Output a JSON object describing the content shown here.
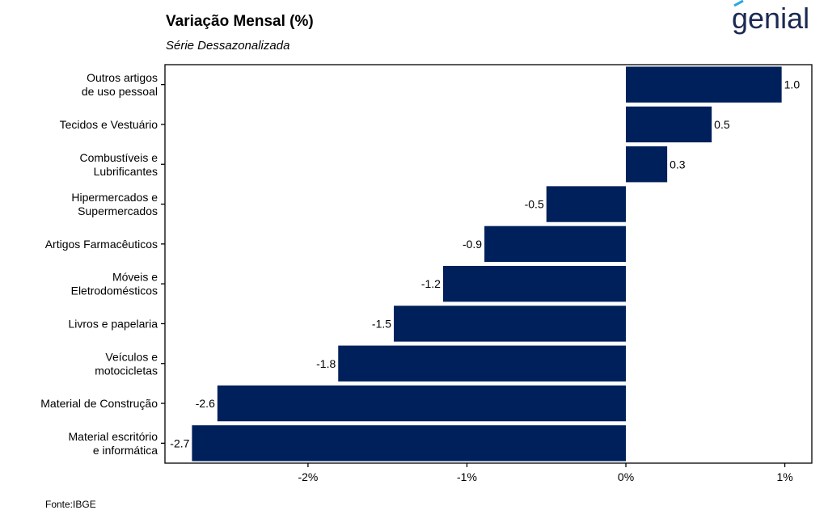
{
  "header": {
    "title": "Variação Mensal (%)",
    "subtitle": "Série Dessazonalizada",
    "logo_text": "genial"
  },
  "footer": {
    "source": "Fonte:IBGE"
  },
  "colors": {
    "bar": "#00205b",
    "logo": "#1b2a52",
    "logo_accent": "#29a9e0"
  },
  "chart_data": {
    "type": "bar",
    "orientation": "horizontal",
    "categories": [
      [
        "Outros artigos",
        "de uso pessoal"
      ],
      [
        "Tecidos e Vestuário"
      ],
      [
        "Combustíveis e",
        "Lubrificantes"
      ],
      [
        "Hipermercados e",
        "Supermercados"
      ],
      [
        "Artigos Farmacêuticos"
      ],
      [
        "Móveis e",
        "Eletrodomésticos"
      ],
      [
        "Livros e papelaria"
      ],
      [
        "Veículos e",
        "motocicletas"
      ],
      [
        "Material de Construção"
      ],
      [
        "Material escritório",
        "e informática"
      ]
    ],
    "values": [
      0.98,
      0.54,
      0.26,
      -0.5,
      -0.89,
      -1.15,
      -1.46,
      -1.81,
      -2.57,
      -2.73
    ],
    "data_labels": [
      "1.0",
      "0.5",
      "0.3",
      "-0.5",
      "-0.9",
      "-1.2",
      "-1.5",
      "-1.8",
      "-2.6",
      "-2.7"
    ],
    "xticks": [
      -2,
      -1,
      0,
      1
    ],
    "xtick_labels": [
      "-2%",
      "-1%",
      "0%",
      "1%"
    ],
    "xlim": [
      -2.9,
      1.17
    ],
    "grid": false
  }
}
